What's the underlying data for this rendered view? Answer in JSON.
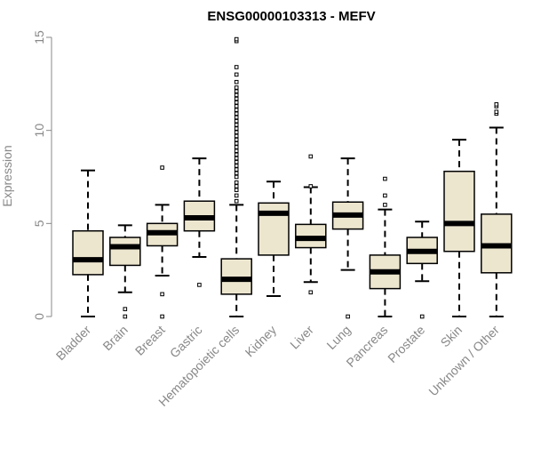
{
  "chart_data": {
    "type": "boxplot",
    "title": "ENSG00000103313 - MEFV",
    "xlabel": "",
    "ylabel": "Expression",
    "ylim": [
      0,
      15
    ],
    "yticks": [
      0,
      5,
      10,
      15
    ],
    "grid": false,
    "colors": {
      "box_fill": "#ede6cf",
      "stroke": "#000000",
      "axis": "#888888"
    },
    "categories": [
      "Bladder",
      "Brain",
      "Breast",
      "Gastric",
      "Hematopoietic cells",
      "Kidney",
      "Liver",
      "Lung",
      "Pancreas",
      "Prostate",
      "Skin",
      "Unknown / Other"
    ],
    "boxes": [
      {
        "category": "Bladder",
        "min": 0.0,
        "q1": 2.25,
        "median": 3.05,
        "q3": 4.6,
        "max": 7.85,
        "outliers": []
      },
      {
        "category": "Brain",
        "min": 1.3,
        "q1": 2.75,
        "median": 3.75,
        "q3": 4.25,
        "max": 4.9,
        "outliers": [
          0.0,
          0.4
        ]
      },
      {
        "category": "Breast",
        "min": 2.2,
        "q1": 3.8,
        "median": 4.5,
        "q3": 5.0,
        "max": 6.0,
        "outliers": [
          0.0,
          1.2,
          8.0
        ]
      },
      {
        "category": "Gastric",
        "min": 3.2,
        "q1": 4.6,
        "median": 5.3,
        "q3": 6.2,
        "max": 8.5,
        "outliers": [
          1.7
        ]
      },
      {
        "category": "Hematopoietic cells",
        "min": 0.0,
        "q1": 1.2,
        "median": 2.0,
        "q3": 3.1,
        "max": 6.0,
        "outliers": [
          6.2,
          6.5,
          6.8,
          7.0,
          7.2,
          7.5,
          7.7,
          7.9,
          8.1,
          8.3,
          8.5,
          8.7,
          8.9,
          9.1,
          9.3,
          9.5,
          9.7,
          9.9,
          10.1,
          10.3,
          10.5,
          10.7,
          10.9,
          11.1,
          11.3,
          11.5,
          11.7,
          11.9,
          12.1,
          12.3,
          12.6,
          13.0,
          13.4,
          14.8,
          14.9
        ]
      },
      {
        "category": "Kidney",
        "min": 1.1,
        "q1": 3.3,
        "median": 5.55,
        "q3": 6.1,
        "max": 7.25,
        "outliers": []
      },
      {
        "category": "Liver",
        "min": 1.85,
        "q1": 3.7,
        "median": 4.2,
        "q3": 4.95,
        "max": 6.95,
        "outliers": [
          1.3,
          7.0,
          8.6
        ]
      },
      {
        "category": "Lung",
        "min": 2.5,
        "q1": 4.7,
        "median": 5.45,
        "q3": 6.15,
        "max": 8.5,
        "outliers": [
          0.0
        ]
      },
      {
        "category": "Pancreas",
        "min": 0.0,
        "q1": 1.5,
        "median": 2.4,
        "q3": 3.3,
        "max": 5.75,
        "outliers": [
          6.0,
          6.5,
          7.4
        ]
      },
      {
        "category": "Prostate",
        "min": 1.9,
        "q1": 2.85,
        "median": 3.5,
        "q3": 4.25,
        "max": 5.1,
        "outliers": [
          0.0
        ]
      },
      {
        "category": "Skin",
        "min": 0.0,
        "q1": 3.5,
        "median": 5.0,
        "q3": 7.8,
        "max": 9.5,
        "outliers": []
      },
      {
        "category": "Unknown / Other",
        "min": 0.0,
        "q1": 2.35,
        "median": 3.8,
        "q3": 5.5,
        "max": 10.15,
        "outliers": [
          10.9,
          11.0,
          11.3,
          11.4
        ]
      }
    ]
  }
}
